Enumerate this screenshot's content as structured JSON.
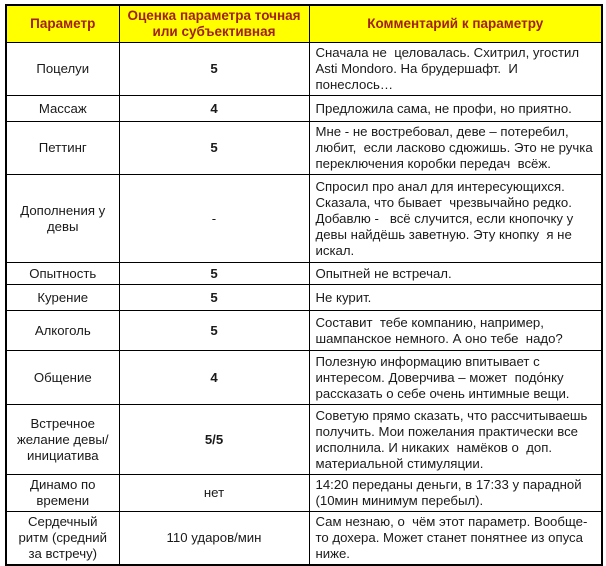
{
  "colors": {
    "header_bg": "#ffff00",
    "header_text": "#a02014",
    "border": "#000000",
    "body_text": "#1a1a1a"
  },
  "table": {
    "header": {
      "param": "Параметр",
      "score": "Оценка параметра точная или субъективная",
      "comment": "Комментарий к параметру"
    },
    "rows": [
      {
        "param": "Поцелуи",
        "score": "5",
        "comment": "Сначала не  целовалась. Схитрил, угостил Asti Mondoro. На брудершафт.  И понеслось…"
      },
      {
        "param": "Массаж",
        "score": "4",
        "comment": "Предложила сама, не профи, но приятно."
      },
      {
        "param": "Петтинг",
        "score": "5",
        "comment": "Мне - не востребовал, деве – потеребил, любит,  если ласково сдюжишь. Это не ручка переключения коробки передач  всёж."
      },
      {
        "param": "Дополнения у девы",
        "score": "-",
        "comment": "Спросил про анал для интересующихся. Сказала, что бывает  чрезвычайно редко. Добавлю -   всё случится, если кнопочку у девы найдёшь заветную. Эту кнопку  я не искал."
      },
      {
        "param": "Опытность",
        "score": "5",
        "comment": "Опытней не встречал."
      },
      {
        "param": "Курение",
        "score": "5",
        "comment": "Не курит."
      },
      {
        "param": "Алкоголь",
        "score": "5",
        "comment": "Составит  тебе компанию, например, шампанское немного. А оно тебе  надо?"
      },
      {
        "param": "Общение",
        "score": "4",
        "comment": "Полезную информацию впитывает с интересом. Доверчива – может  подо́нку рассказать о себе очень интимные вещи."
      },
      {
        "param": "Встречное желание девы/ инициатива",
        "score": "5/5",
        "comment": "Советую прямо сказать, что рассчитываешь получить. Мои пожелания практически все исполнила. И никаких  намёков о  доп. материальной стимуляции."
      },
      {
        "param": "Динамо по времени",
        "score": "нет",
        "comment": "14:20 переданы деньги, в 17:33 у парадной (10мин минимум перебыл)."
      },
      {
        "param": "Сердечный ритм (средний за встречу)",
        "score": "110 ударов/мин",
        "comment": "Сам незнаю, о  чём этот параметр. Вообще-то дохера. Может станет понятнее из опуса ниже."
      }
    ]
  }
}
